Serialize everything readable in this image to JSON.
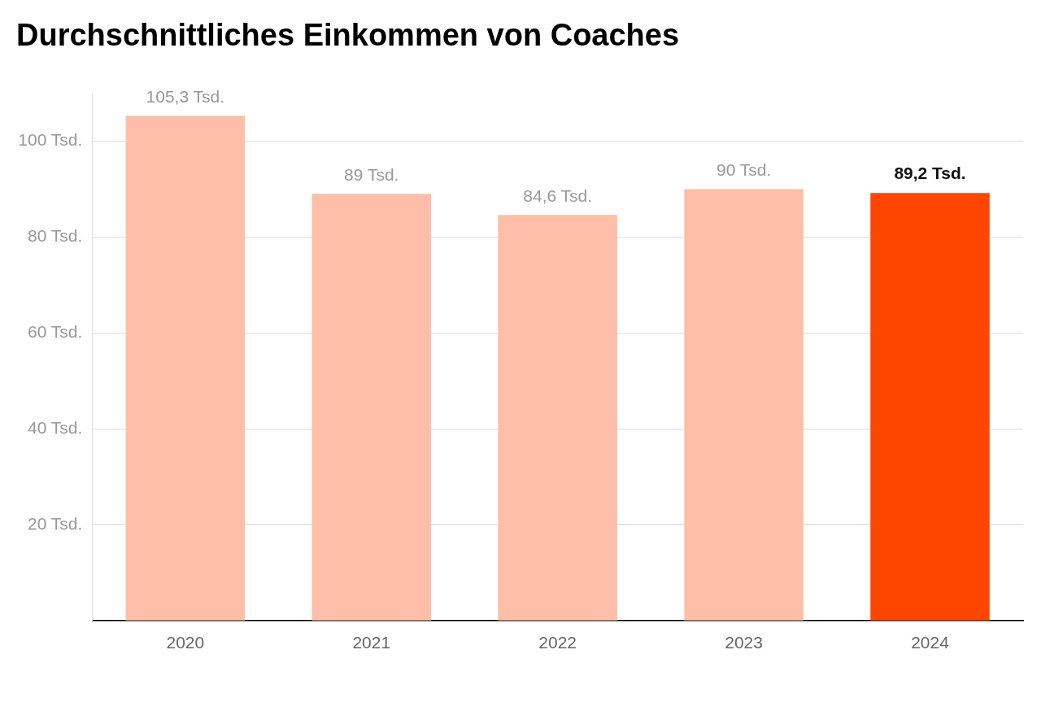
{
  "chart_data": {
    "type": "bar",
    "title": "Durchschnittliches Einkommen von Coaches",
    "categories": [
      "2020",
      "2021",
      "2022",
      "2023",
      "2024"
    ],
    "values": [
      105.3,
      89,
      84.6,
      90,
      89.2
    ],
    "colors": [
      "#ffbea7",
      "#ffbea7",
      "#ffbea7",
      "#ffbea7",
      "#ff4500"
    ],
    "value_labels": [
      "105,3 Tsd.",
      "89 Tsd.",
      "84,6 Tsd.",
      "90 Tsd.",
      "89,2 Tsd."
    ],
    "ylim": [
      0,
      110
    ],
    "yticks": [
      {
        "value": 20,
        "label": "20 Tsd."
      },
      {
        "value": 40,
        "label": "40 Tsd."
      },
      {
        "value": 60,
        "label": "60 Tsd."
      },
      {
        "value": 80,
        "label": "80 Tsd."
      },
      {
        "value": 100,
        "label": "100 Tsd."
      }
    ],
    "grid": "y",
    "legend": false
  }
}
